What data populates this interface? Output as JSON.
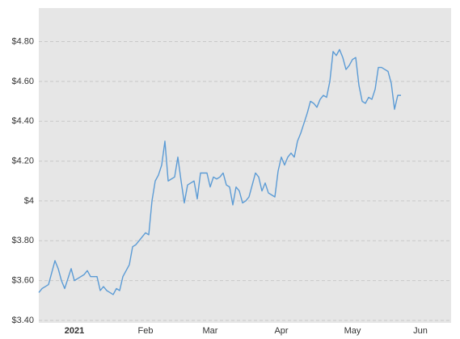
{
  "chart_data": {
    "type": "line",
    "categories": [
      null,
      null,
      null,
      null,
      null,
      null,
      null,
      null,
      null,
      null,
      null,
      "2021",
      null,
      null,
      null,
      null,
      null,
      null,
      null,
      null,
      null,
      null,
      null,
      null,
      null,
      null,
      null,
      null,
      null,
      null,
      null,
      null,
      null,
      "Feb",
      null,
      null,
      null,
      null,
      null,
      null,
      null,
      null,
      null,
      null,
      null,
      null,
      null,
      null,
      null,
      null,
      null,
      null,
      null,
      "Mar",
      null,
      null,
      null,
      null,
      null,
      null,
      null,
      null,
      null,
      null,
      null,
      null,
      null,
      null,
      null,
      null,
      null,
      null,
      null,
      null,
      null,
      "Apr",
      null,
      null,
      null,
      null,
      null,
      null,
      null,
      null,
      null,
      null,
      null,
      null,
      null,
      null,
      null,
      null,
      null,
      null,
      null,
      null,
      null,
      "May",
      null,
      null,
      null,
      null,
      null,
      null,
      null,
      null,
      null,
      null,
      null,
      null,
      null,
      null,
      null,
      null,
      null,
      null,
      null,
      null,
      "Jun",
      null,
      null,
      null,
      null,
      null,
      null,
      null,
      null,
      null
    ],
    "series": [
      {
        "color": "#5b9bd5",
        "values": [
          3.54,
          3.56,
          3.57,
          3.58,
          3.64,
          3.7,
          3.66,
          3.6,
          3.56,
          3.61,
          3.66,
          3.6,
          3.61,
          3.62,
          3.63,
          3.65,
          3.62,
          3.62,
          3.62,
          3.55,
          3.57,
          3.55,
          3.54,
          3.53,
          3.56,
          3.55,
          3.62,
          3.65,
          3.68,
          3.77,
          3.78,
          3.8,
          3.82,
          3.84,
          3.83,
          4.0,
          4.1,
          4.13,
          4.18,
          4.3,
          4.1,
          4.11,
          4.12,
          4.22,
          4.1,
          3.99,
          4.08,
          4.09,
          4.1,
          4.01,
          4.14,
          4.14,
          4.14,
          4.07,
          4.12,
          4.11,
          4.12,
          4.14,
          4.08,
          4.07,
          3.98,
          4.07,
          4.05,
          3.99,
          4.0,
          4.02,
          4.08,
          4.14,
          4.12,
          4.05,
          4.09,
          4.04,
          4.03,
          4.02,
          4.15,
          4.22,
          4.18,
          4.22,
          4.24,
          4.22,
          4.3,
          4.34,
          4.39,
          4.44,
          4.5,
          4.49,
          4.47,
          4.51,
          4.53,
          4.52,
          4.6,
          4.75,
          4.73,
          4.76,
          4.72,
          4.66,
          4.68,
          4.71,
          4.72,
          4.58,
          4.5,
          4.49,
          4.52,
          4.51,
          4.56,
          4.67,
          4.67,
          4.66,
          4.65,
          4.59,
          4.46,
          4.53,
          4.53,
          null,
          null,
          null,
          null,
          null,
          null,
          null,
          null,
          null,
          null,
          null,
          null,
          null,
          null,
          null
        ]
      }
    ],
    "ylim": [
      3.4,
      4.96
    ],
    "yticks": [
      {
        "value": 3.4,
        "label": "$3.40"
      },
      {
        "value": 3.6,
        "label": "$3.60"
      },
      {
        "value": 3.8,
        "label": "$3.80"
      },
      {
        "value": 4,
        "label": "$4"
      },
      {
        "value": 4.2,
        "label": "$4.20"
      },
      {
        "value": 4.4,
        "label": "$4.40"
      },
      {
        "value": 4.6,
        "label": "$4.60"
      },
      {
        "value": 4.8,
        "label": "$4.80"
      }
    ],
    "grid": true
  }
}
